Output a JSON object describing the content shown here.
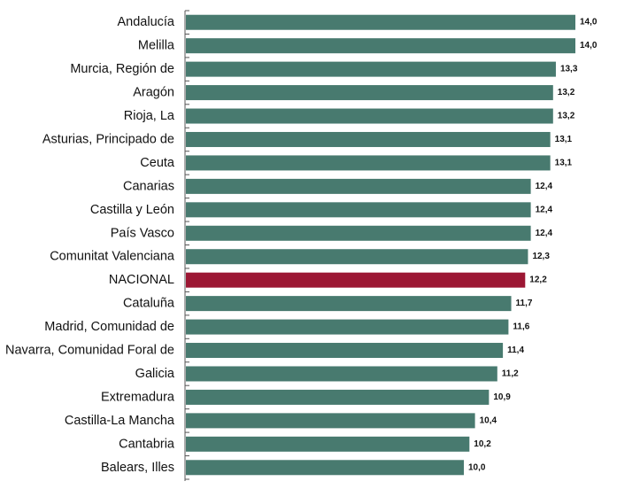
{
  "chart_data": {
    "type": "bar",
    "orientation": "horizontal",
    "categories": [
      "Andalucía",
      "Melilla",
      "Murcia, Región de",
      "Aragón",
      "Rioja, La",
      "Asturias, Principado de",
      "Ceuta",
      "Canarias",
      "Castilla y León",
      "País Vasco",
      "Comunitat Valenciana",
      "NACIONAL",
      "Cataluña",
      "Madrid, Comunidad de",
      "Navarra, Comunidad Foral de",
      "Galicia",
      "Extremadura",
      "Castilla-La Mancha",
      "Cantabria",
      "Balears, Illes"
    ],
    "values": [
      14.0,
      14.0,
      13.3,
      13.2,
      13.2,
      13.1,
      13.1,
      12.4,
      12.4,
      12.4,
      12.3,
      12.2,
      11.7,
      11.6,
      11.4,
      11.2,
      10.9,
      10.4,
      10.2,
      10.0
    ],
    "value_labels": [
      "14,0",
      "14,0",
      "13,3",
      "13,2",
      "13,2",
      "13,1",
      "13,1",
      "12,4",
      "12,4",
      "12,4",
      "12,3",
      "12,2",
      "11,7",
      "11,6",
      "11,4",
      "11,2",
      "10,9",
      "10,4",
      "10,2",
      "10,0"
    ],
    "highlight_category": "NACIONAL",
    "xlim": [
      0,
      14.0
    ],
    "grid": false,
    "legend": "none",
    "colors": {
      "bar": "#487a6f",
      "highlight": "#9c1734",
      "axis": "#555555"
    }
  }
}
